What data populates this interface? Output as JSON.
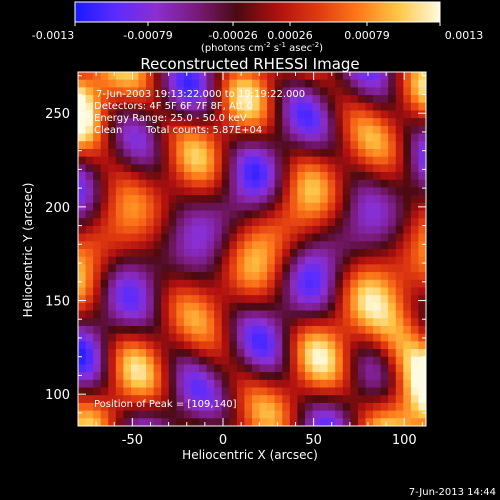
{
  "colorbar": {
    "tick_labels": [
      "-0.0013",
      "-0.00079",
      "-0.00026",
      "0.00026",
      "0.00079",
      "0.0013"
    ],
    "unit_label_prefix": "(photons cm",
    "unit_label_sup1": "-2",
    "unit_label_mid": " s",
    "unit_label_sup2": "-1",
    "unit_label_mid2": " asec",
    "unit_label_sup3": "-2",
    "unit_label_suffix": ")",
    "colors": [
      "#1a1aff",
      "#5a2cff",
      "#8b2fd0",
      "#7a1a7a",
      "#4a0a10",
      "#b01010",
      "#e03a10",
      "#ff7a1a",
      "#ffc84a",
      "#fffbe0"
    ]
  },
  "chart_data": {
    "type": "heatmap",
    "title": "Reconstructed RHESSI Image",
    "xlabel": "Heliocentric X (arcsec)",
    "ylabel": "Heliocentric Y (arcsec)",
    "xlim": [
      -80,
      112
    ],
    "ylim": [
      83,
      272
    ],
    "x_ticks": [
      -50,
      0,
      50,
      100
    ],
    "y_ticks": [
      100,
      150,
      200,
      250
    ],
    "x_tick_labels": [
      "-50",
      "0",
      "50",
      "100"
    ],
    "y_tick_labels": [
      "100",
      "150",
      "200",
      "250"
    ],
    "value_range": [
      -0.0013,
      0.0013
    ],
    "annotations": [
      "7-Jun-2003 19:13:22.000 to 19:19:22.000",
      "Detectors: 4F 5F 6F 7F 8F, Att 0",
      "Energy Range: 25.0 - 50.0 keV",
      "Clean",
      "Total counts: 5.87E+04"
    ],
    "peak_label": "Position of Peak = [109,140]",
    "peak_position": [
      109,
      140
    ]
  },
  "footer": {
    "timestamp": "7-Jun-2013 14:44"
  }
}
